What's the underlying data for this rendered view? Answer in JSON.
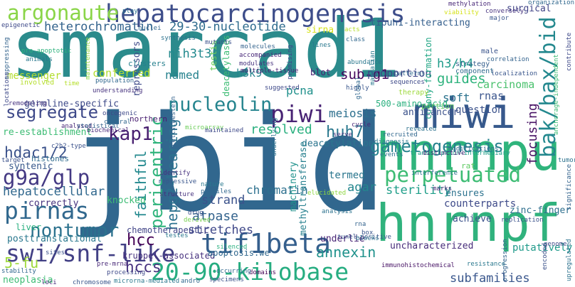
{
  "words": [
    {
      "text": "smarcad1",
      "color": "#2b8b8c"
    },
    {
      "text": "jbid",
      "color": "#31678e"
    },
    {
      "text": "hnrnpu",
      "color": "#2fb47c"
    },
    {
      "text": "hnrnpf",
      "color": "#30b27d"
    },
    {
      "text": "miwi",
      "color": "#37598c"
    },
    {
      "text": "hepatocarcinogenesis",
      "color": "#3d4d8a"
    },
    {
      "text": "argonaute",
      "color": "#8ad548"
    },
    {
      "text": "tif1beta",
      "color": "#355f8d"
    },
    {
      "text": "swi/snf-like",
      "color": "#424085"
    },
    {
      "text": "20-90-kilobase",
      "color": "#27ad81"
    },
    {
      "text": "piwi",
      "color": "#482374"
    },
    {
      "text": "pirnas",
      "color": "#31688e"
    },
    {
      "text": "nucleolin",
      "color": "#25848e"
    },
    {
      "text": "perpetuated",
      "color": "#3dbc74"
    },
    {
      "text": "g9a/glp",
      "color": "#443983"
    },
    {
      "text": "nontumor",
      "color": "#2c728e"
    },
    {
      "text": "bak/bax/bid",
      "color": "#23888e"
    },
    {
      "text": "pericentric",
      "color": "#2fb47c"
    },
    {
      "text": "gametogenesis",
      "color": "#26828e"
    },
    {
      "text": "hepg2-bearing",
      "color": "#2c728e"
    },
    {
      "text": "segregate",
      "color": "#3e4989"
    },
    {
      "text": "kap1",
      "color": "#481f70"
    },
    {
      "text": "faithful",
      "color": "#23898e"
    },
    {
      "text": "huh7",
      "color": "#2a788e"
    },
    {
      "text": "hdac1/2",
      "color": "#3b528b"
    },
    {
      "text": "annexin",
      "color": "#20928c"
    },
    {
      "text": "hcc",
      "color": "#440154"
    },
    {
      "text": "hccs",
      "color": "#46307e"
    },
    {
      "text": "stretches",
      "color": "#3f4889"
    },
    {
      "text": "atpase",
      "color": "#33638d"
    },
    {
      "text": "sub-g1",
      "color": "#46085c"
    },
    {
      "text": "resolved",
      "color": "#2ab07f"
    },
    {
      "text": "focusing",
      "color": "#471164"
    },
    {
      "text": "guides",
      "color": "#2db27d"
    },
    {
      "text": "heterochromatin",
      "color": "#33638d"
    },
    {
      "text": "29-30-nucleotide",
      "color": "#2f6c8e"
    },
    {
      "text": "hepatocellular",
      "color": "#31688e"
    },
    {
      "text": "5-fu",
      "color": "#9dd93b"
    },
    {
      "text": "synteniс",
      "color": "#38598c"
    },
    {
      "text": "h3/h4",
      "color": "#1e9b8a"
    },
    {
      "text": "carcinoma",
      "color": "#4ac16d"
    },
    {
      "text": "sterility",
      "color": "#1f9e89"
    },
    {
      "text": "meiosis",
      "color": "#2d708e"
    },
    {
      "text": "chromatin",
      "color": "#2d708e"
    },
    {
      "text": "strand",
      "color": "#3b528b"
    },
    {
      "text": "pcna",
      "color": "#21918c"
    },
    {
      "text": "nih3t3",
      "color": "#23898e"
    },
    {
      "text": "h3k9",
      "color": "#25848e"
    },
    {
      "text": "agar",
      "color": "#24868e"
    },
    {
      "text": "conferred",
      "color": "#b2dd2d"
    },
    {
      "text": "tipuh1-interacting",
      "color": "#355f8d"
    },
    {
      "text": "sirna",
      "color": "#d5e21a"
    },
    {
      "text": "proportion",
      "color": "#404688"
    },
    {
      "text": "rnas",
      "color": "#3a548c"
    },
    {
      "text": "soft",
      "color": "#2c738e"
    },
    {
      "text": "question",
      "color": "#3b528b"
    },
    {
      "text": "named",
      "color": "#26828e"
    },
    {
      "text": "deacetylases",
      "color": "#3dbc74"
    },
    {
      "text": "testis",
      "color": "#6ccd5a"
    },
    {
      "text": "repressors",
      "color": "#3e4a89"
    },
    {
      "text": "colony-formation",
      "color": "#21a685"
    },
    {
      "text": "500-amino-acid",
      "color": "#2ab07f"
    },
    {
      "text": "anticancer",
      "color": "#3b528b"
    },
    {
      "text": "termed",
      "color": "#2a768e"
    },
    {
      "text": "ensures",
      "color": "#2c728e"
    },
    {
      "text": "counterparts",
      "color": "#3e4a89"
    },
    {
      "text": "achieve",
      "color": "#3b528b"
    },
    {
      "text": "zinc-finger",
      "color": "#2e6f8e"
    },
    {
      "text": "putatively",
      "color": "#1f9a8a"
    },
    {
      "text": "uncharacterized",
      "color": "#472c7a"
    },
    {
      "text": "subfamilies",
      "color": "#39568c"
    },
    {
      "text": "deacetylation",
      "color": "#2b758e"
    },
    {
      "text": "machinery",
      "color": "#20928c"
    },
    {
      "text": "methyltransferase",
      "color": "#27808e"
    },
    {
      "text": "underlie",
      "color": "#482576"
    },
    {
      "text": "portion",
      "color": "#5ec962"
    },
    {
      "text": "re-establishment",
      "color": "#3dbc74"
    },
    {
      "text": "messenger",
      "color": "#b2dd2d"
    },
    {
      "text": "germline-specific",
      "color": "#3e4a89"
    },
    {
      "text": "histones",
      "color": "#2f6b8e"
    },
    {
      "text": "correctly",
      "color": "#46327e"
    },
    {
      "text": "knocked",
      "color": "#3dbc74"
    },
    {
      "text": "liver",
      "color": "#29af7f"
    },
    {
      "text": "posttranslational",
      "color": "#2a788e"
    },
    {
      "text": "chemotherapeutic",
      "color": "#414487"
    },
    {
      "text": "kruppel-associated",
      "color": "#46307e"
    },
    {
      "text": "apoptosis.we",
      "color": "#31688e"
    },
    {
      "text": "neoplasia",
      "color": "#3dbc74"
    },
    {
      "text": "surgical",
      "color": "#414487"
    },
    {
      "text": "clusters",
      "color": "#27808e"
    },
    {
      "text": "northern",
      "color": "#471d6f"
    },
    {
      "text": "multiple-tissue",
      "color": "#482173"
    },
    {
      "text": "blot",
      "color": "#482071"
    },
    {
      "text": "therapy",
      "color": "#9dd93b"
    },
    {
      "text": "strategy",
      "color": "#355f8d"
    },
    {
      "text": "male",
      "color": "#3a548c"
    },
    {
      "text": "component",
      "color": "#2f6b8e"
    },
    {
      "text": "pro-apoptotic",
      "color": "#2db27d"
    },
    {
      "text": "animals",
      "color": "#2a788e"
    },
    {
      "text": "involved",
      "color": "#b5de2b"
    },
    {
      "text": "suppressing",
      "color": "#33638d"
    },
    {
      "text": "epigenetic",
      "color": "#3e4989"
    },
    {
      "text": "remodeling",
      "color": "#46327e"
    },
    {
      "text": "analysed",
      "color": "#482878"
    },
    {
      "text": "target",
      "color": "#3b528b"
    },
    {
      "text": "sites",
      "color": "#3b528b"
    },
    {
      "text": "stability",
      "color": "#31688e"
    },
    {
      "text": "loci",
      "color": "#472a7a"
    },
    {
      "text": "chromosome",
      "color": "#39568c"
    },
    {
      "text": "specimens",
      "color": "#3b528b"
    },
    {
      "text": "microrna-mediated",
      "color": "#2a788e"
    },
    {
      "text": "andro",
      "color": "#31688e"
    },
    {
      "text": "domains",
      "color": "#440154"
    },
    {
      "text": "silenced",
      "color": "#29af7f"
    },
    {
      "text": "tunel-positive",
      "color": "#39568c"
    },
    {
      "text": "immunohistochemical",
      "color": "#471365"
    },
    {
      "text": "resistance",
      "color": "#2a788e"
    },
    {
      "text": "progression",
      "color": "#33638d"
    },
    {
      "text": "upregulated",
      "color": "#2c728e"
    },
    {
      "text": "genome",
      "color": "#3e4989"
    },
    {
      "text": "replication",
      "color": "#3b528b"
    },
    {
      "text": "tumor",
      "color": "#2c728e"
    },
    {
      "text": "significance",
      "color": "#33638d"
    },
    {
      "text": "transcription-intermediary",
      "color": "#1f9e89"
    },
    {
      "text": "rat",
      "color": "#5ec962"
    },
    {
      "text": "interference",
      "color": "#2c728e"
    },
    {
      "text": "distinctive",
      "color": "#482878"
    },
    {
      "text": "events",
      "color": "#2c728e"
    },
    {
      "text": "recruited",
      "color": "#31688e"
    },
    {
      "text": "revealed",
      "color": "#2c728e"
    },
    {
      "text": "diagnosis",
      "color": "#2a788e"
    },
    {
      "text": "patterns",
      "color": "#31688e"
    },
    {
      "text": "highly",
      "color": "#39568c"
    },
    {
      "text": "cycle",
      "color": "#482878"
    },
    {
      "text": "serve",
      "color": "#46327e"
    },
    {
      "text": "mammalian",
      "color": "#2a788e"
    },
    {
      "text": "statistical",
      "color": "#33638d"
    },
    {
      "text": "oncogenic",
      "color": "#3e4989"
    },
    {
      "text": "central",
      "color": "#31688e"
    },
    {
      "text": "biochemical",
      "color": "#482878"
    },
    {
      "text": "microarray",
      "color": "#6ccd5a"
    },
    {
      "text": "maintained",
      "color": "#3e4989"
    },
    {
      "text": "identify",
      "color": "#46327e"
    },
    {
      "text": "repressive",
      "color": "#39568c"
    },
    {
      "text": "nature",
      "color": "#2a788e"
    },
    {
      "text": "structure",
      "color": "#46327e"
    },
    {
      "text": "profiles",
      "color": "#31688e"
    },
    {
      "text": "drug",
      "color": "#3b528b"
    },
    {
      "text": "derived",
      "color": "#7ad151"
    },
    {
      "text": "pre-mrna",
      "color": "#482878"
    },
    {
      "text": "processing",
      "color": "#3e4989"
    },
    {
      "text": "murine",
      "color": "#31688e"
    },
    {
      "text": "analysis",
      "color": "#2c728e"
    },
    {
      "text": "elucidated",
      "color": "#8fd744"
    },
    {
      "text": "rna",
      "color": "#33638d"
    },
    {
      "text": "box",
      "color": "#39568c"
    },
    {
      "text": "blocks",
      "color": "#2c728e"
    },
    {
      "text": "molecules",
      "color": "#33638d"
    },
    {
      "text": "accompanied",
      "color": "#482878"
    },
    {
      "text": "modulates",
      "color": "#46327e"
    },
    {
      "text": "suggested",
      "color": "#3e4989"
    },
    {
      "text": "mutants",
      "color": "#3b528b"
    },
    {
      "text": "synthesis",
      "color": "#2c728e"
    },
    {
      "text": "nuclei",
      "color": "#31688e"
    },
    {
      "text": "promising",
      "color": "#3e4989"
    },
    {
      "text": "acts",
      "color": "#b5de2b"
    },
    {
      "text": "class",
      "color": "#31688e"
    },
    {
      "text": "lines",
      "color": "#2a788e"
    },
    {
      "text": "abundance",
      "color": "#2a788e"
    },
    {
      "text": "global",
      "color": "#31688e"
    },
    {
      "text": "sequences",
      "color": "#3e4989"
    },
    {
      "text": "methylation",
      "color": "#482878"
    },
    {
      "text": "organization",
      "color": "#31688e"
    },
    {
      "text": "viability",
      "color": "#d5e21a"
    },
    {
      "text": "conversely",
      "color": "#46327e"
    },
    {
      "text": "major",
      "color": "#39568c"
    },
    {
      "text": "contribute",
      "color": "#3e4989"
    },
    {
      "text": "correlation",
      "color": "#33638d"
    },
    {
      "text": "localization",
      "color": "#39568c"
    },
    {
      "text": "anchorage-independent",
      "color": "#3dbc74"
    },
    {
      "text": "modifications",
      "color": "#31688e"
    },
    {
      "text": "play",
      "color": "#2c728e"
    },
    {
      "text": "population",
      "color": "#31688e"
    },
    {
      "text": "understanding",
      "color": "#46327e"
    },
    {
      "text": "maintenance",
      "color": "#8fd744"
    },
    {
      "text": "time",
      "color": "#b5de2b"
    },
    {
      "text": "locations",
      "color": "#3e4989"
    },
    {
      "text": "c2h2-type",
      "color": "#3b528b"
    },
    {
      "text": "cells.western",
      "color": "#33638d"
    },
    {
      "text": "underlying",
      "color": "#2c728e"
    },
    {
      "text": "encoded",
      "color": "#3b528b"
    },
    {
      "text": "marks",
      "color": "#482878"
    },
    {
      "text": "occurring",
      "color": "#31688e"
    },
    {
      "text": "testes",
      "color": "#2a788e"
    }
  ]
}
